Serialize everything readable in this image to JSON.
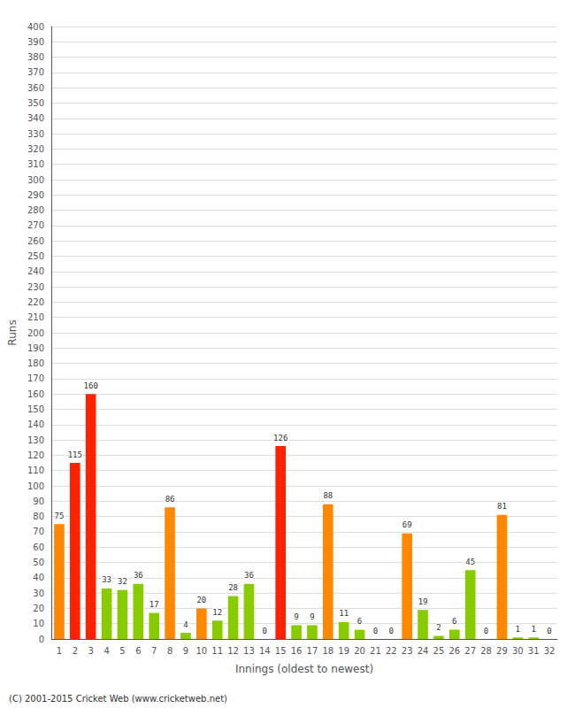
{
  "chart_data": {
    "type": "bar",
    "xlabel": "Innings (oldest to newest)",
    "ylabel": "Runs",
    "categories": [
      1,
      2,
      3,
      4,
      5,
      6,
      7,
      8,
      9,
      10,
      11,
      12,
      13,
      14,
      15,
      16,
      17,
      18,
      19,
      20,
      21,
      22,
      23,
      24,
      25,
      26,
      27,
      28,
      29,
      30,
      31,
      32
    ],
    "values": [
      75,
      115,
      160,
      33,
      32,
      36,
      17,
      86,
      4,
      20,
      12,
      28,
      36,
      0,
      126,
      9,
      9,
      88,
      11,
      6,
      0,
      0,
      69,
      19,
      2,
      6,
      45,
      0,
      81,
      1,
      1,
      0
    ],
    "colors": [
      "#ff8800",
      "#ff2200",
      "#ff2200",
      "#88cc00",
      "#88cc00",
      "#88cc00",
      "#88cc00",
      "#ff8800",
      "#88cc00",
      "#ff8800",
      "#88cc00",
      "#88cc00",
      "#88cc00",
      "#ff8800",
      "#ff2200",
      "#88cc00",
      "#88cc00",
      "#ff8800",
      "#88cc00",
      "#88cc00",
      "#ff8800",
      "#ff8800",
      "#ff8800",
      "#88cc00",
      "#88cc00",
      "#88cc00",
      "#88cc00",
      "#ff8800",
      "#ff8800",
      "#88cc00",
      "#88cc00",
      "#ff8800"
    ],
    "ylim": [
      0,
      400
    ],
    "yticks": [
      0,
      10,
      20,
      30,
      40,
      50,
      60,
      70,
      80,
      90,
      100,
      110,
      120,
      130,
      140,
      150,
      160,
      170,
      180,
      190,
      200,
      210,
      220,
      230,
      240,
      250,
      260,
      270,
      280,
      290,
      300,
      310,
      320,
      330,
      340,
      350,
      360,
      370,
      380,
      390,
      400
    ],
    "grid": true,
    "data_labels": true,
    "annotations": [
      "(C) 2001-2015 Cricket Web (www.cricketweb.net)"
    ]
  }
}
